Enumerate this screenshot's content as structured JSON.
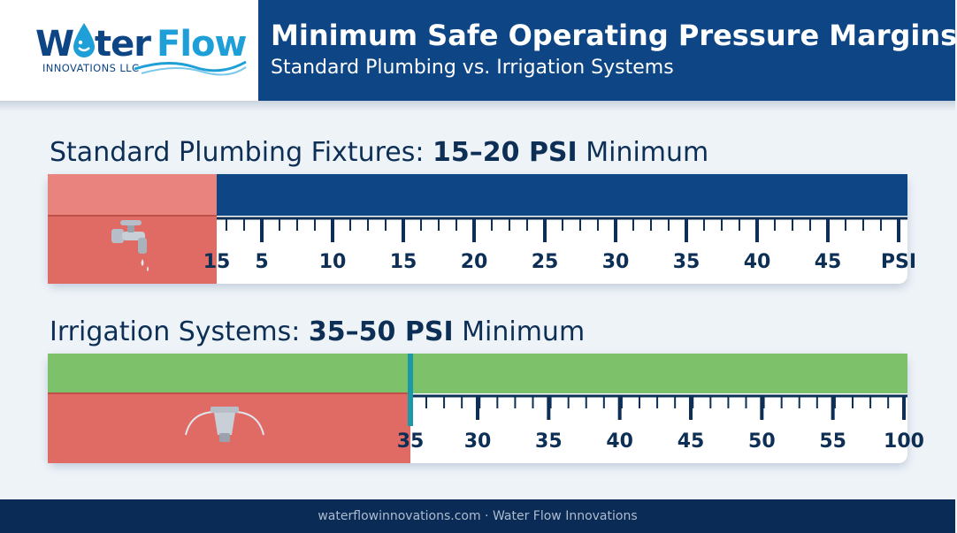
{
  "brand": {
    "logo_w": "W",
    "logo_ter": "ter",
    "logo_flow": "Flow",
    "logo_sub": "INNOVATIONS LLC"
  },
  "header": {
    "title": "Minimum Safe Operating Pressure Margins",
    "subtitle": "Standard Plumbing vs. Irrigation Systems"
  },
  "colors": {
    "navy": "#0d4585",
    "danger_red": "#e06a64",
    "green": "#7dc26a",
    "marker_teal": "#1a9aa8"
  },
  "plumbing": {
    "heading_prefix": "Standard Plumbing Fixtures: ",
    "heading_value": "15–20 PSI",
    "heading_suffix": " Minimum",
    "icon": "faucet-icon",
    "marker_label": "15",
    "tick_labels": [
      "5",
      "10",
      "15",
      "20",
      "25",
      "30",
      "35",
      "40",
      "45",
      "PSI"
    ]
  },
  "irrigation": {
    "heading_prefix": "Irrigation Systems: ",
    "heading_value": "35–50 PSI",
    "heading_suffix": " Minimum",
    "icon": "sprinkler-icon",
    "marker_label": "35",
    "tick_labels": [
      "30",
      "35",
      "40",
      "45",
      "50",
      "55",
      "100"
    ]
  },
  "footer": {
    "text": "waterflowinnovations.com · Water Flow Innovations"
  }
}
